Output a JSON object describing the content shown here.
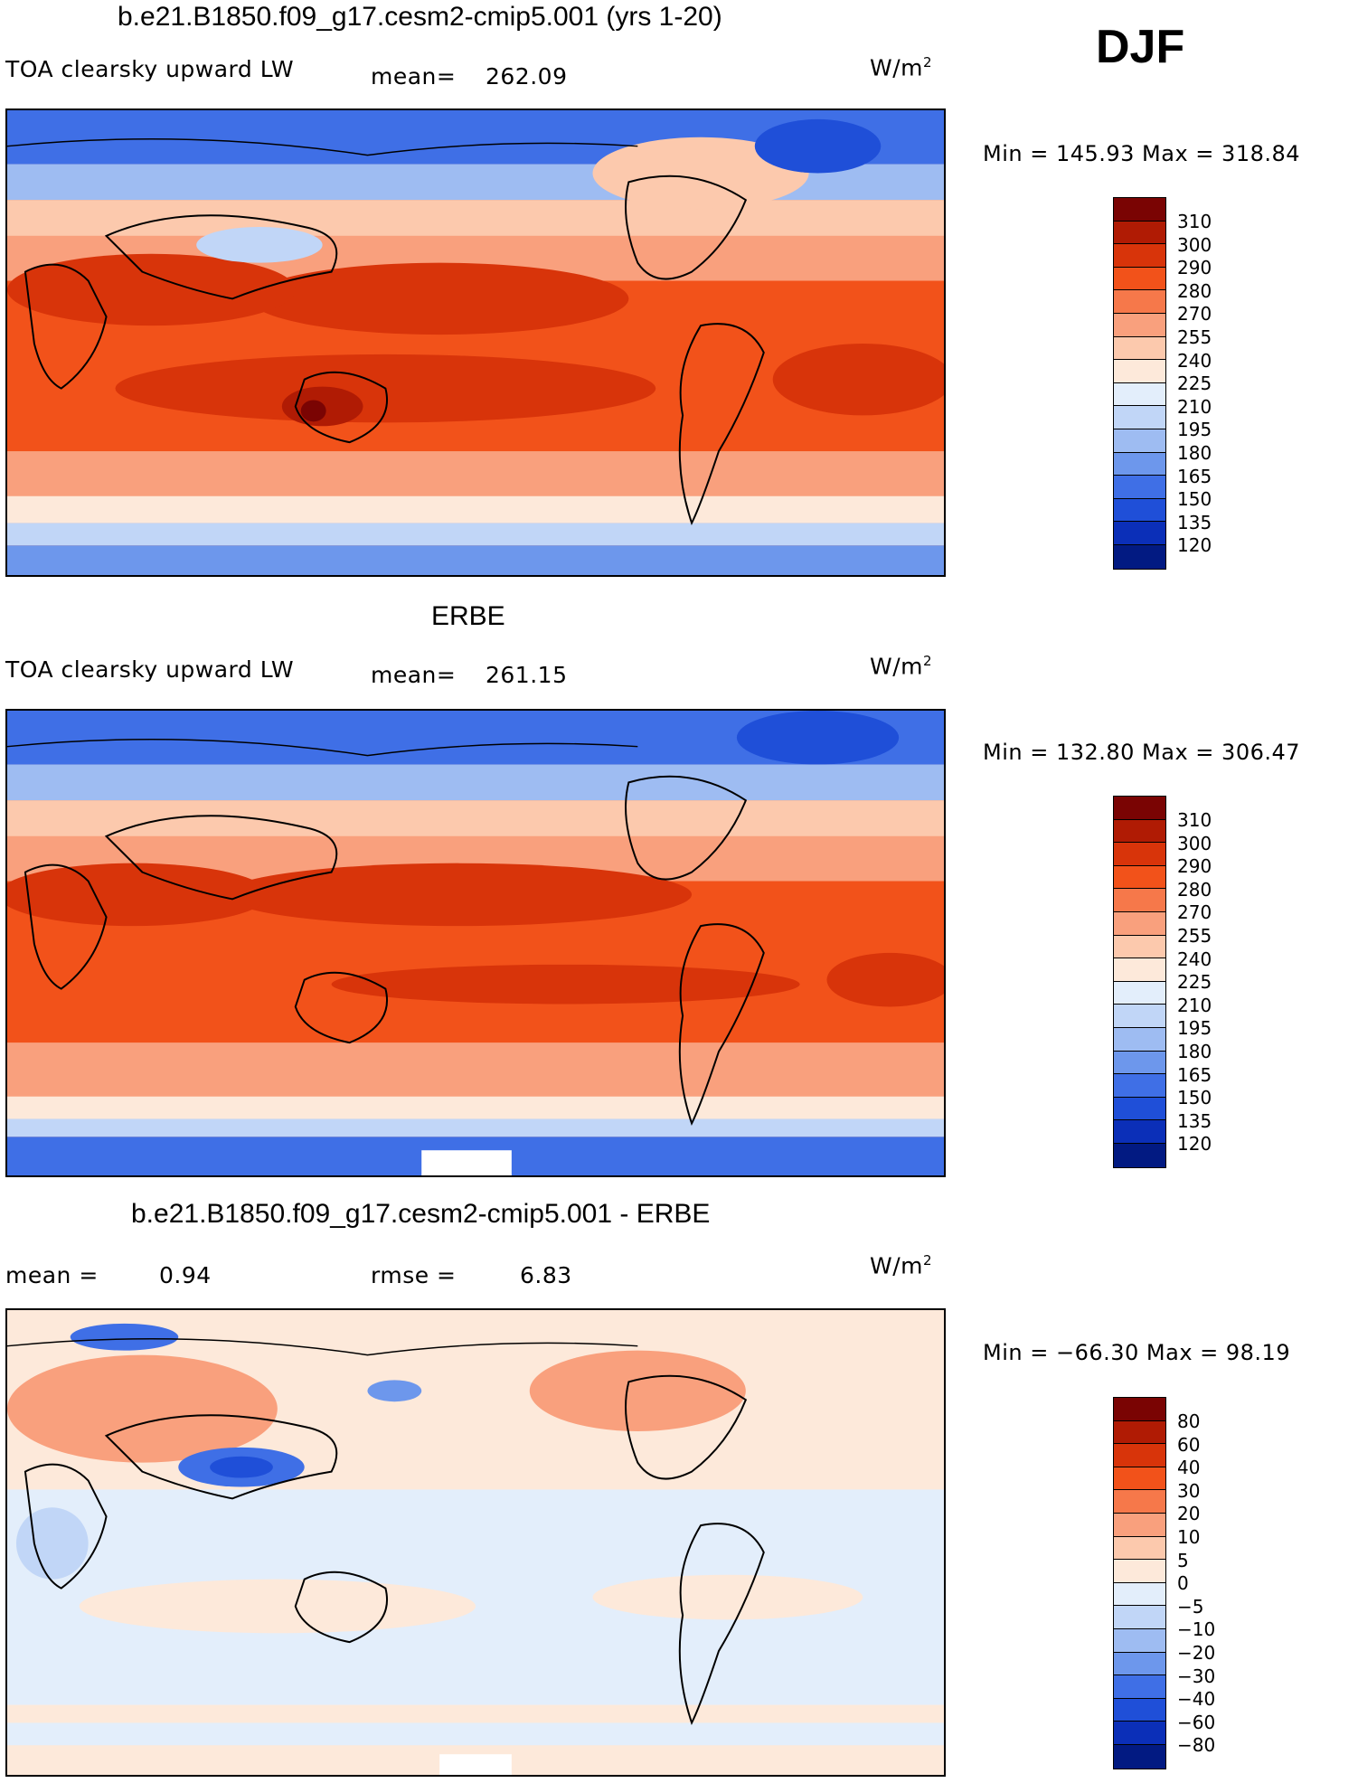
{
  "season": "DJF",
  "units_text": "W/m",
  "units_exp": "2",
  "panels": [
    {
      "id": "model",
      "title": "b.e21.B1850.f09_g17.cesm2-cmip5.001 (yrs 1-20)",
      "variable": "TOA clearsky upward LW",
      "mean_label": "mean=",
      "mean_value": "262.09",
      "minmax": "Min = 145.93 Max = 318.84",
      "colorbar": {
        "levels": [
          "310",
          "300",
          "290",
          "280",
          "270",
          "255",
          "240",
          "225",
          "210",
          "195",
          "180",
          "165",
          "150",
          "135",
          "120"
        ],
        "colors": [
          "#7a0403",
          "#b01b04",
          "#d8340a",
          "#f2521a",
          "#f6784a",
          "#f9a07d",
          "#fcc9ad",
          "#fde9da",
          "#e3eefb",
          "#c1d6f7",
          "#9ebcf2",
          "#6d97ec",
          "#3f6fe6",
          "#1f4fd8",
          "#0b2fb8",
          "#021a82"
        ]
      }
    },
    {
      "id": "obs",
      "title": "ERBE",
      "variable": "TOA clearsky upward LW",
      "mean_label": "mean=",
      "mean_value": "261.15",
      "minmax": "Min = 132.80 Max = 306.47",
      "colorbar": {
        "levels": [
          "310",
          "300",
          "290",
          "280",
          "270",
          "255",
          "240",
          "225",
          "210",
          "195",
          "180",
          "165",
          "150",
          "135",
          "120"
        ],
        "colors": [
          "#7a0403",
          "#b01b04",
          "#d8340a",
          "#f2521a",
          "#f6784a",
          "#f9a07d",
          "#fcc9ad",
          "#fde9da",
          "#e3eefb",
          "#c1d6f7",
          "#9ebcf2",
          "#6d97ec",
          "#3f6fe6",
          "#1f4fd8",
          "#0b2fb8",
          "#021a82"
        ]
      }
    },
    {
      "id": "diff",
      "title": "b.e21.B1850.f09_g17.cesm2-cmip5.001 - ERBE",
      "mean_label": "mean =",
      "mean_value": "0.94",
      "rmse_label": "rmse =",
      "rmse_value": "6.83",
      "minmax": "Min = −66.30 Max =  98.19",
      "colorbar": {
        "levels": [
          "80",
          "60",
          "40",
          "30",
          "20",
          "10",
          "5",
          "0",
          "−5",
          "−10",
          "−20",
          "−30",
          "−40",
          "−60",
          "−80"
        ],
        "colors": [
          "#7a0403",
          "#b01b04",
          "#d8340a",
          "#f2521a",
          "#f6784a",
          "#f9a07d",
          "#fcc9ad",
          "#fde9da",
          "#e3eefb",
          "#c1d6f7",
          "#9ebcf2",
          "#6d97ec",
          "#3f6fe6",
          "#1f4fd8",
          "#0b2fb8",
          "#021a82"
        ]
      }
    }
  ]
}
